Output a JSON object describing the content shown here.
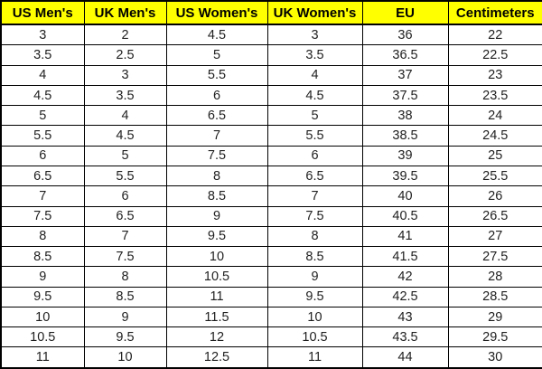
{
  "colors": {
    "header_bg": "#ffff00",
    "header_text": "#000000",
    "grid_border": "#000000",
    "cell_bg": "#ffffff",
    "cell_text": "#1f1f1f"
  },
  "table": {
    "headers": [
      "US Men's",
      "UK Men's",
      "US Women's",
      "UK Women's",
      "EU",
      "Centimeters"
    ],
    "rows": [
      [
        "3",
        "2",
        "4.5",
        "3",
        "36",
        "22"
      ],
      [
        "3.5",
        "2.5",
        "5",
        "3.5",
        "36.5",
        "22.5"
      ],
      [
        "4",
        "3",
        "5.5",
        "4",
        "37",
        "23"
      ],
      [
        "4.5",
        "3.5",
        "6",
        "4.5",
        "37.5",
        "23.5"
      ],
      [
        "5",
        "4",
        "6.5",
        "5",
        "38",
        "24"
      ],
      [
        "5.5",
        "4.5",
        "7",
        "5.5",
        "38.5",
        "24.5"
      ],
      [
        "6",
        "5",
        "7.5",
        "6",
        "39",
        "25"
      ],
      [
        "6.5",
        "5.5",
        "8",
        "6.5",
        "39.5",
        "25.5"
      ],
      [
        "7",
        "6",
        "8.5",
        "7",
        "40",
        "26"
      ],
      [
        "7.5",
        "6.5",
        "9",
        "7.5",
        "40.5",
        "26.5"
      ],
      [
        "8",
        "7",
        "9.5",
        "8",
        "41",
        "27"
      ],
      [
        "8.5",
        "7.5",
        "10",
        "8.5",
        "41.5",
        "27.5"
      ],
      [
        "9",
        "8",
        "10.5",
        "9",
        "42",
        "28"
      ],
      [
        "9.5",
        "8.5",
        "11",
        "9.5",
        "42.5",
        "28.5"
      ],
      [
        "10",
        "9",
        "11.5",
        "10",
        "43",
        "29"
      ],
      [
        "10.5",
        "9.5",
        "12",
        "10.5",
        "43.5",
        "29.5"
      ],
      [
        "11",
        "10",
        "12.5",
        "11",
        "44",
        "30"
      ]
    ]
  },
  "chart_data": {
    "type": "table",
    "title": "",
    "columns": [
      "US Men's",
      "UK Men's",
      "US Women's",
      "UK Women's",
      "EU",
      "Centimeters"
    ],
    "series": [
      {
        "name": "US Men's",
        "values": [
          3,
          3.5,
          4,
          4.5,
          5,
          5.5,
          6,
          6.5,
          7,
          7.5,
          8,
          8.5,
          9,
          9.5,
          10,
          10.5,
          11
        ]
      },
      {
        "name": "UK Men's",
        "values": [
          2,
          2.5,
          3,
          3.5,
          4,
          4.5,
          5,
          5.5,
          6,
          6.5,
          7,
          7.5,
          8,
          8.5,
          9,
          9.5,
          10
        ]
      },
      {
        "name": "US Women's",
        "values": [
          4.5,
          5,
          5.5,
          6,
          6.5,
          7,
          7.5,
          8,
          8.5,
          9,
          9.5,
          10,
          10.5,
          11,
          11.5,
          12,
          12.5
        ]
      },
      {
        "name": "UK Women's",
        "values": [
          3,
          3.5,
          4,
          4.5,
          5,
          5.5,
          6,
          6.5,
          7,
          7.5,
          8,
          8.5,
          9,
          9.5,
          10,
          10.5,
          11
        ]
      },
      {
        "name": "EU",
        "values": [
          36,
          36.5,
          37,
          37.5,
          38,
          38.5,
          39,
          39.5,
          40,
          40.5,
          41,
          41.5,
          42,
          42.5,
          43,
          43.5,
          44
        ]
      },
      {
        "name": "Centimeters",
        "values": [
          22,
          22.5,
          23,
          23.5,
          24,
          24.5,
          25,
          25.5,
          26,
          26.5,
          27,
          27.5,
          28,
          28.5,
          29,
          29.5,
          30
        ]
      }
    ],
    "layout": {
      "header_background": "#ffff00",
      "grid": true,
      "rows": 17
    }
  }
}
